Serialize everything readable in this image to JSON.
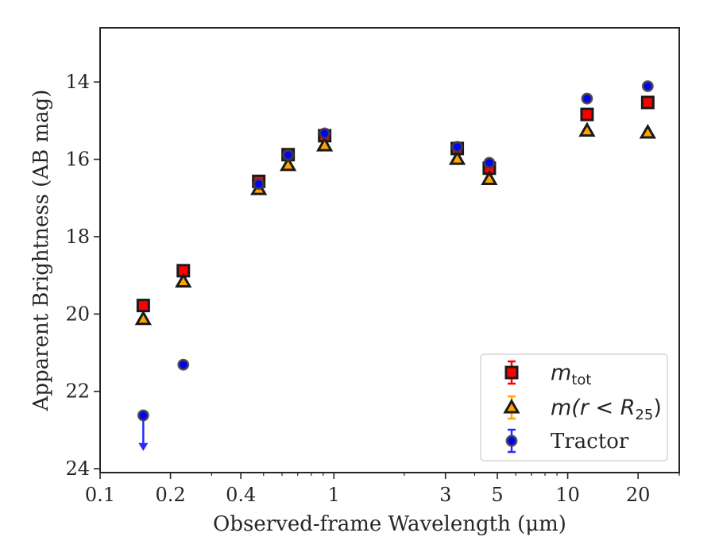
{
  "chart_data": {
    "type": "scatter",
    "xlabel": "Observed-frame Wavelength (μm)",
    "ylabel": "Apparent Brightness (AB mag)",
    "x_scale": "log",
    "xlim": [
      0.1,
      30
    ],
    "ylim": [
      24.1,
      12.6
    ],
    "y_inverted": true,
    "x_ticks": [
      0.1,
      0.2,
      0.4,
      1,
      3,
      5,
      10,
      20
    ],
    "x_tick_labels": [
      "0.1",
      "0.2",
      "0.4",
      "1",
      "3",
      "5",
      "10",
      "20"
    ],
    "y_ticks": [
      14,
      16,
      18,
      20,
      22,
      24
    ],
    "y_tick_labels": [
      "14",
      "16",
      "18",
      "20",
      "22",
      "24"
    ],
    "grid": false,
    "legend_position": "lower-right",
    "series": [
      {
        "name": "m_tot",
        "label_main": "m",
        "label_sub": "tot",
        "marker": "square",
        "color": "#ff0000",
        "edge_color": "#1a1a1a",
        "x": [
          0.153,
          0.227,
          0.477,
          0.637,
          0.913,
          3.37,
          4.62,
          12.1,
          22.0
        ],
        "y": [
          19.78,
          18.88,
          16.57,
          15.88,
          15.39,
          15.72,
          16.23,
          14.84,
          14.53
        ]
      },
      {
        "name": "m(r<R25)",
        "label_main": "m(r < R",
        "label_sub": "25",
        "label_end": ")",
        "marker": "triangle",
        "color": "#ffa500",
        "edge_color": "#1a1a1a",
        "x": [
          0.153,
          0.227,
          0.477,
          0.637,
          0.913,
          3.37,
          4.62,
          12.1,
          22.0
        ],
        "y": [
          20.13,
          19.16,
          16.77,
          16.15,
          15.64,
          15.99,
          16.51,
          15.26,
          15.31
        ]
      },
      {
        "name": "Tractor",
        "label_main": "Tractor",
        "marker": "circle",
        "color": "#0000ff",
        "edge_color": "#404040",
        "x": [
          0.153,
          0.227,
          0.477,
          0.637,
          0.913,
          3.37,
          4.62,
          12.1,
          22.0
        ],
        "y": [
          22.62,
          21.31,
          16.64,
          15.89,
          15.33,
          15.68,
          16.09,
          14.43,
          14.11
        ],
        "upper_limit_index": 0,
        "upper_limit_to": 23.5
      }
    ]
  }
}
